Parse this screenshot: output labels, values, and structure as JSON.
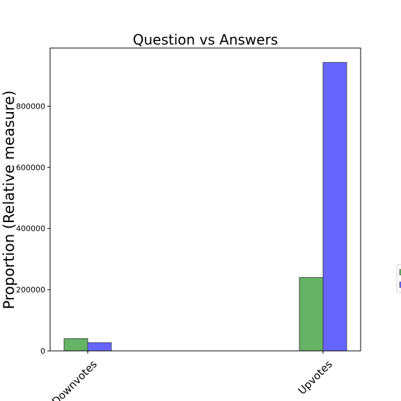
{
  "chart_data": {
    "type": "bar",
    "title": "Question vs Answers",
    "xlabel": "",
    "ylabel": "Proportion (Relative measure)",
    "categories": [
      "Downvotes",
      "Upvotes"
    ],
    "series": [
      {
        "values": [
          40000,
          240000
        ],
        "color": "#66b266"
      },
      {
        "values": [
          27000,
          943000
        ],
        "color": "#6666ff"
      }
    ],
    "ylim": [
      0,
      990000
    ],
    "yticks": [
      0,
      200000,
      400000,
      600000,
      800000
    ],
    "ytick_labels": [
      "0",
      "200000",
      "400000",
      "600000",
      "800000"
    ],
    "grid": false,
    "legend_location": "right (clipped)"
  }
}
